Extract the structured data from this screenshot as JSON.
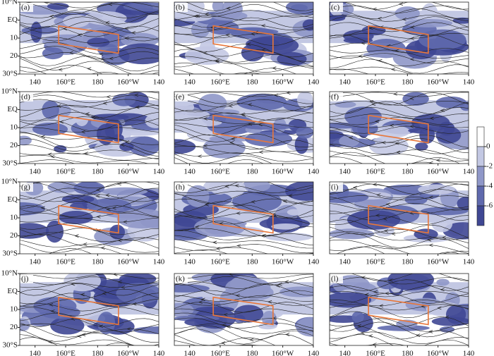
{
  "panels": [
    {
      "label": "(a)"
    },
    {
      "label": "(b)"
    },
    {
      "label": "(c)"
    },
    {
      "label": "(d)"
    },
    {
      "label": "(e)"
    },
    {
      "label": "(f)"
    },
    {
      "label": "(g)"
    },
    {
      "label": "(h)"
    },
    {
      "label": "(i)"
    },
    {
      "label": "(j)"
    },
    {
      "label": "(k)"
    },
    {
      "label": "(l)"
    }
  ],
  "lat_labels": [
    "10°N",
    "EQ",
    "10",
    "20",
    "30°S"
  ],
  "lon_labels": [
    "140",
    "160°E",
    "180",
    "160°W",
    "140"
  ],
  "colorbar": {
    "ticks": [
      0,
      -2,
      -4,
      -6
    ]
  }
}
